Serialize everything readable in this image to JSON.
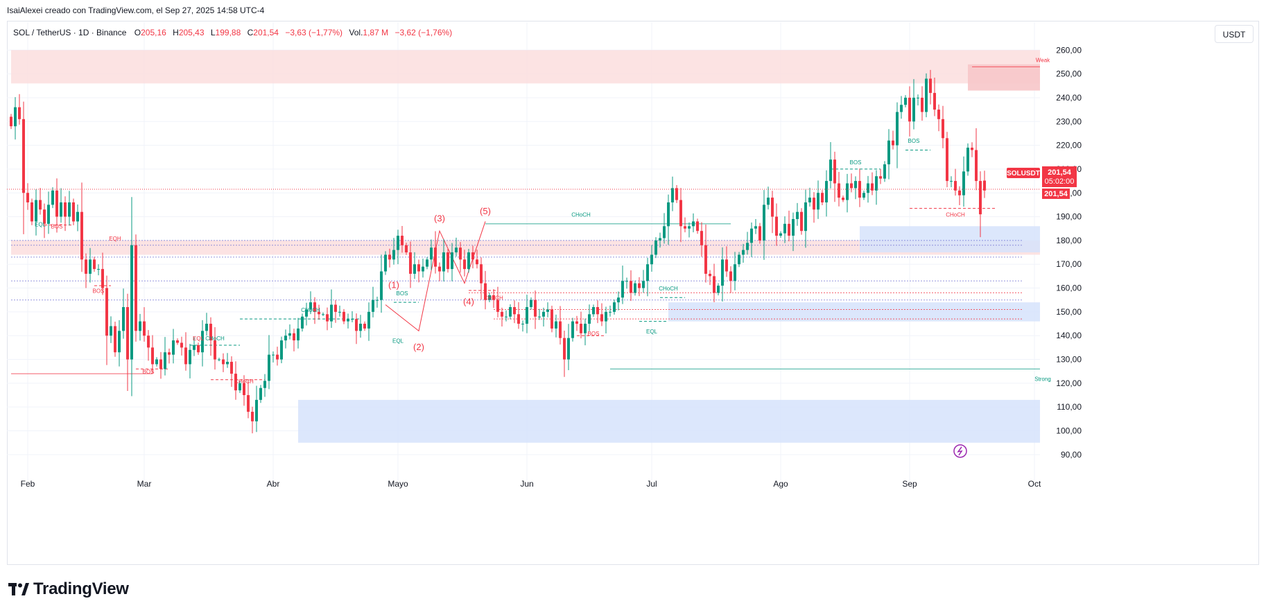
{
  "author_line": "IsaiAlexei creado con TradingView.com, el Sep 27, 2025 14:58 UTC-4",
  "legend": {
    "symbol": "SOL / TetherUS · 1D · Binance",
    "o_label": "O",
    "o_value": "205,16",
    "h_label": "H",
    "h_value": "205,43",
    "l_label": "L",
    "l_value": "199,88",
    "c_label": "C",
    "c_value": "201,54",
    "change": "−3,63 (−1,77%)",
    "vol_label": "Vol.",
    "vol_value": "1,87 M",
    "vol_change": "−3,62 (−1,76%)"
  },
  "currency_button": "USDT",
  "price_badges": {
    "symbol_tag": "SOLUSDT",
    "last_price": "201,54",
    "countdown": "05:02:00",
    "price_line": "201,54"
  },
  "logo_text": "TradingView",
  "colors": {
    "up": "#089981",
    "down": "#f23645",
    "supply_zone": "#fcdede",
    "demand_zone": "#d6e3fc",
    "grid": "#f0f3fa"
  },
  "chart_data": {
    "type": "candlestick",
    "title": "SOL / TetherUS · 1D · Binance",
    "ylim": [
      85,
      263
    ],
    "y_ticks": [
      90,
      100,
      110,
      120,
      130,
      140,
      150,
      160,
      170,
      180,
      190,
      200,
      210,
      220,
      230,
      240,
      250,
      260
    ],
    "y_tick_labels": [
      "90,00",
      "100,00",
      "110,00",
      "120,00",
      "130,00",
      "140,00",
      "150,00",
      "160,00",
      "170,00",
      "180,00",
      "190,00",
      "200,00",
      "210,00",
      "220,00",
      "230,00",
      "240,00",
      "250,00",
      "260,00"
    ],
    "x_labels": [
      {
        "label": "Feb",
        "date": "2025-02-01"
      },
      {
        "label": "Mar",
        "date": "2025-03-01"
      },
      {
        "label": "Abr",
        "date": "2025-04-01"
      },
      {
        "label": "Mayo",
        "date": "2025-05-01"
      },
      {
        "label": "Jun",
        "date": "2025-06-01"
      },
      {
        "label": "Jul",
        "date": "2025-07-01"
      },
      {
        "label": "Ago",
        "date": "2025-08-01"
      },
      {
        "label": "Sep",
        "date": "2025-09-01"
      },
      {
        "label": "Oct",
        "date": "2025-10-01"
      }
    ],
    "start_date": "2025-01-28",
    "closes": [
      228,
      236,
      231,
      200,
      196,
      188,
      197,
      193,
      187,
      195,
      201,
      190,
      196,
      190,
      196,
      188,
      192,
      172,
      166,
      172,
      168,
      168,
      160,
      140,
      144,
      133,
      142,
      152,
      130,
      178,
      142,
      146,
      140,
      135,
      128,
      130,
      126,
      133,
      132,
      138,
      137,
      135,
      128,
      134,
      136,
      133,
      142,
      145,
      138,
      130,
      130,
      128,
      129,
      124,
      117,
      120,
      115,
      108,
      104,
      113,
      118,
      121,
      132,
      132,
      130,
      138,
      140,
      141,
      138,
      143,
      148,
      151,
      154,
      150,
      149,
      149,
      146,
      153,
      150,
      150,
      146,
      147,
      147,
      142,
      145,
      143,
      150,
      155,
      155,
      167,
      174,
      172,
      176,
      182,
      178,
      175,
      166,
      170,
      167,
      169,
      172,
      177,
      169,
      167,
      175,
      168,
      175,
      177,
      172,
      168,
      175,
      172,
      170,
      162,
      155,
      157,
      155,
      150,
      148,
      148,
      152,
      149,
      145,
      145,
      152,
      155,
      148,
      148,
      150,
      151,
      143,
      146,
      139,
      130,
      139,
      146,
      145,
      141,
      145,
      149,
      152,
      149,
      146,
      150,
      150,
      154,
      156,
      163,
      163,
      158,
      162,
      160,
      163,
      170,
      174,
      180,
      181,
      186,
      196,
      202,
      197,
      186,
      185,
      186,
      188,
      184,
      178,
      166,
      165,
      158,
      161,
      172,
      167,
      163,
      170,
      174,
      176,
      179,
      185,
      186,
      180,
      195,
      198,
      190,
      182,
      183,
      187,
      182,
      189,
      192,
      184,
      196,
      198,
      193,
      200,
      196,
      205,
      214,
      204,
      198,
      197,
      204,
      202,
      205,
      198,
      200,
      204,
      201,
      207,
      206,
      212,
      222,
      220,
      234,
      237,
      240,
      230,
      240,
      240,
      234,
      248,
      242,
      235,
      231,
      223,
      205,
      205,
      201,
      199,
      209,
      219,
      218,
      205,
      191,
      201
    ],
    "open_close_of_last": {
      "open": 205.16,
      "high": 205.43,
      "low": 199.88,
      "close": 201.54
    },
    "zones": [
      {
        "kind": "supply",
        "from": "2025-01-28",
        "to": "2025-10-05",
        "low": 246,
        "high": 260
      },
      {
        "kind": "supply",
        "from": "2025-09-15",
        "to": "2025-10-05",
        "low": 243,
        "high": 254,
        "label": "Weak"
      },
      {
        "kind": "supply",
        "from": "2025-01-28",
        "to": "2025-10-05",
        "low": 174,
        "high": 180
      },
      {
        "kind": "demand",
        "from": "2025-08-20",
        "to": "2025-10-05",
        "low": 175,
        "high": 186
      },
      {
        "kind": "demand",
        "from": "2025-07-05",
        "to": "2025-10-05",
        "low": 146,
        "high": 154
      },
      {
        "kind": "demand",
        "from": "2025-04-07",
        "to": "2025-10-05",
        "low": 95,
        "high": 113
      }
    ],
    "annotations": [
      {
        "text": "EQL",
        "date": "2025-02-04",
        "price": 186,
        "color": "up"
      },
      {
        "text": "BOS",
        "date": "2025-02-08",
        "price": 185,
        "color": "down"
      },
      {
        "text": "EQH",
        "date": "2025-02-22",
        "price": 180,
        "color": "down"
      },
      {
        "text": "BOS",
        "date": "2025-02-18",
        "price": 158,
        "color": "down"
      },
      {
        "text": "BOS",
        "date": "2025-03-02",
        "price": 124,
        "color": "down"
      },
      {
        "text": "EQL",
        "date": "2025-03-14",
        "price": 138,
        "color": "down"
      },
      {
        "text": "CHoCH",
        "date": "2025-03-18",
        "price": 138,
        "color": "up"
      },
      {
        "text": "CHoCH",
        "date": "2025-03-25",
        "price": 120,
        "color": "down"
      },
      {
        "text": "CHoCH",
        "date": "2025-04-10",
        "price": 150,
        "color": "up"
      },
      {
        "text": "BOS",
        "date": "2025-05-02",
        "price": 157,
        "color": "up"
      },
      {
        "text": "EQL",
        "date": "2025-05-01",
        "price": 137,
        "color": "up"
      },
      {
        "text": "(1)",
        "date": "2025-04-30",
        "price": 160,
        "color": "wave"
      },
      {
        "text": "(2)",
        "date": "2025-05-06",
        "price": 134,
        "color": "wave"
      },
      {
        "text": "(3)",
        "date": "2025-05-11",
        "price": 188,
        "color": "wave"
      },
      {
        "text": "(4)",
        "date": "2025-05-18",
        "price": 153,
        "color": "wave"
      },
      {
        "text": "(5)",
        "date": "2025-05-22",
        "price": 191,
        "color": "wave"
      },
      {
        "text": "CHoCH",
        "date": "2025-05-24",
        "price": 155,
        "color": "down"
      },
      {
        "text": "CHoCH",
        "date": "2025-06-14",
        "price": 190,
        "color": "up"
      },
      {
        "text": "BOS",
        "date": "2025-06-17",
        "price": 140,
        "color": "down"
      },
      {
        "text": "CHoCH",
        "date": "2025-07-05",
        "price": 159,
        "color": "up"
      },
      {
        "text": "EQL",
        "date": "2025-07-01",
        "price": 141,
        "color": "up"
      },
      {
        "text": "BOS",
        "date": "2025-08-19",
        "price": 212,
        "color": "up"
      },
      {
        "text": "BOS",
        "date": "2025-09-02",
        "price": 221,
        "color": "up"
      },
      {
        "text": "CHoCH",
        "date": "2025-09-12",
        "price": 190,
        "color": "down"
      },
      {
        "text": "Weak",
        "date": "2025-10-03",
        "price": 255,
        "color": "down"
      },
      {
        "text": "Strong",
        "date": "2025-10-03",
        "price": 121,
        "color": "up"
      }
    ]
  }
}
